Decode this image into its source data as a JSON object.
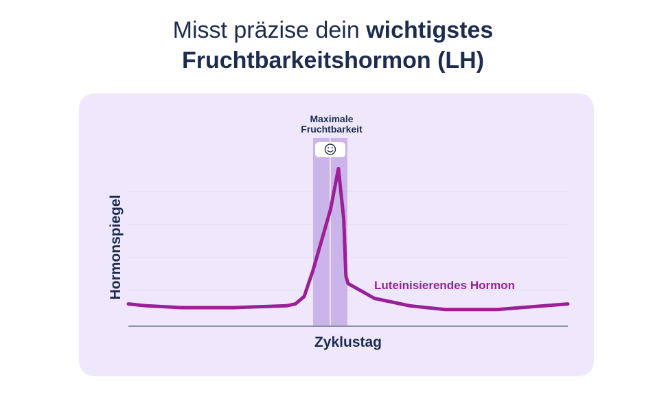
{
  "title": {
    "light": "Misst präzise dein",
    "bold1": "wichtigstes",
    "bold2": "Fruchtbarkeitshormon (LH)"
  },
  "colors": {
    "title": "#1c2b4e",
    "panel": "#efe8fd",
    "curve": "#9b1f96",
    "highlight": "#c7aee8",
    "axis": "#8a93a6",
    "grid": "#e2dcef"
  },
  "chart_data": {
    "type": "line",
    "xlabel": "Zyklustag",
    "ylabel": "Hormonspiegel",
    "annotation": {
      "label_line1": "Maximale",
      "label_line2": "Fruchtbarkeit",
      "icon": "smiley-icon"
    },
    "series": [
      {
        "name": "Luteinisierendes Hormon",
        "points": [
          [
            0.0,
            0.12
          ],
          [
            0.04,
            0.11
          ],
          [
            0.12,
            0.1
          ],
          [
            0.24,
            0.1
          ],
          [
            0.36,
            0.11
          ],
          [
            0.38,
            0.12
          ],
          [
            0.4,
            0.16
          ],
          [
            0.42,
            0.3
          ],
          [
            0.46,
            0.63
          ],
          [
            0.478,
            0.85
          ],
          [
            0.49,
            0.58
          ],
          [
            0.495,
            0.27
          ],
          [
            0.5,
            0.23
          ],
          [
            0.56,
            0.15
          ],
          [
            0.64,
            0.11
          ],
          [
            0.72,
            0.09
          ],
          [
            0.84,
            0.09
          ],
          [
            1.0,
            0.12
          ]
        ]
      }
    ],
    "grid": true
  }
}
